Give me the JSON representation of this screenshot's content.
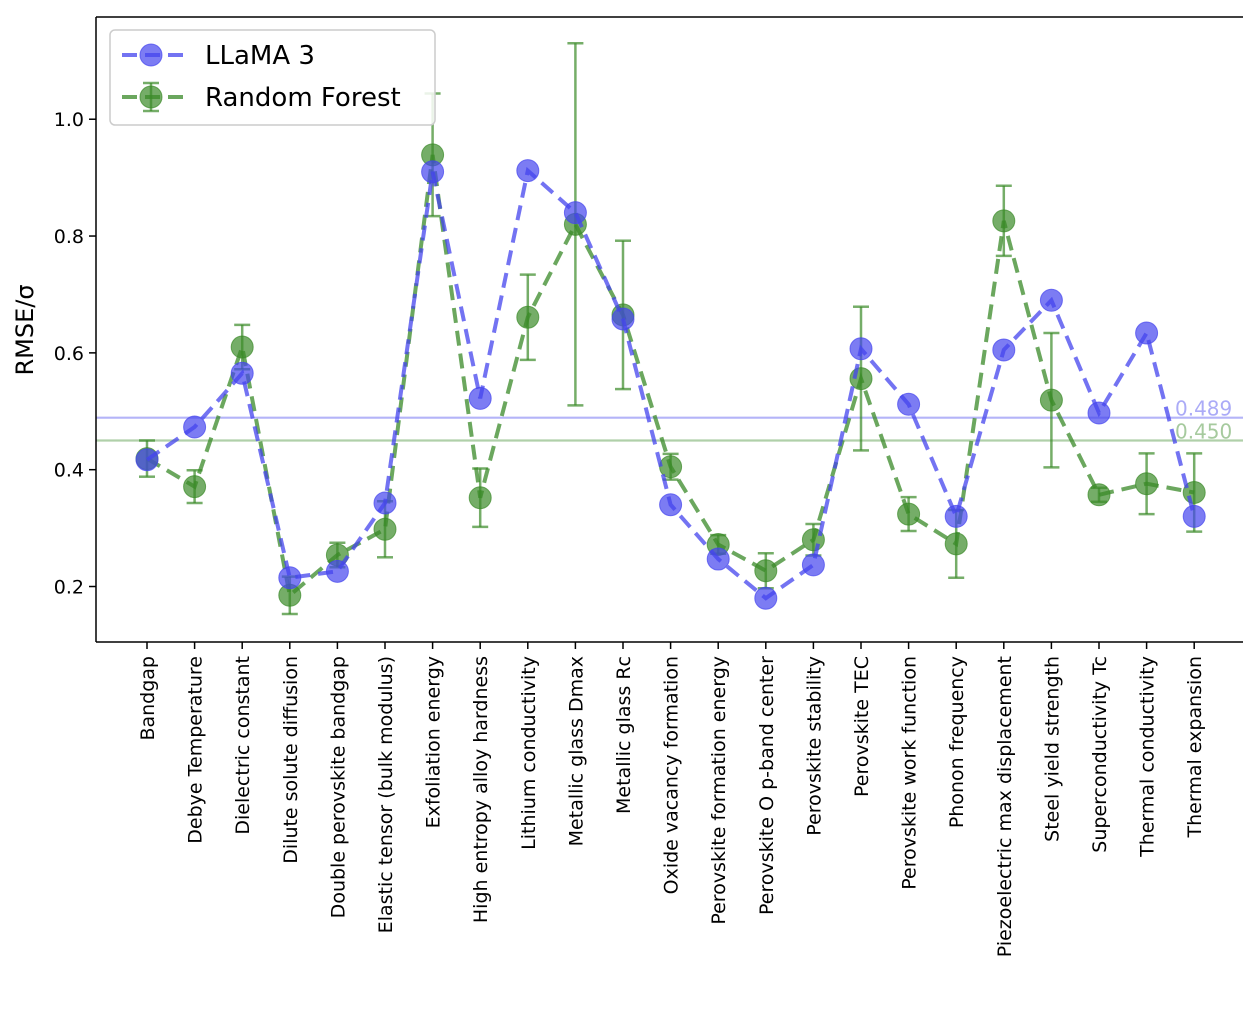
{
  "chart_data": {
    "type": "line",
    "ylabel": "RMSE/σ",
    "xlabel": "",
    "ylim": [
      0.105,
      1.175
    ],
    "yticks": [
      "0.2",
      "0.4",
      "0.6",
      "0.8",
      "1.0"
    ],
    "grid": false,
    "legend_position": "top-left",
    "categories": [
      "Bandgap",
      "Debye Temperature",
      "Dielectric constant",
      "Dilute solute diffusion",
      "Double perovskite bandgap",
      "Elastic tensor (bulk modulus)",
      "Exfoliation energy",
      "High entropy alloy hardness",
      "Lithium conductivity",
      "Metallic glass Dmax",
      "Metallic glass Rc",
      "Oxide vacancy formation",
      "Perovskite formation energy",
      "Perovskite O p-band center",
      "Perovskite stability",
      "Perovskite TEC",
      "Perovskite work function",
      "Phonon frequency",
      "Piezoelectric max displacement",
      "Steel yield strength",
      "Superconductivity Tc",
      "Thermal conductivity",
      "Thermal expansion"
    ],
    "series": [
      {
        "name": "LLaMA 3",
        "color": "#4444ee",
        "values": [
          0.417,
          0.473,
          0.565,
          0.215,
          0.226,
          0.343,
          0.91,
          0.522,
          0.912,
          0.84,
          0.658,
          0.34,
          0.247,
          0.18,
          0.237,
          0.607,
          0.512,
          0.32,
          0.605,
          0.69,
          0.497,
          0.634,
          0.32
        ],
        "mean": 0.489,
        "mean_label": "0.489"
      },
      {
        "name": "Random Forest",
        "color": "#3a8a28",
        "values": [
          0.419,
          0.371,
          0.61,
          0.185,
          0.254,
          0.298,
          0.939,
          0.352,
          0.661,
          0.82,
          0.665,
          0.405,
          0.272,
          0.227,
          0.28,
          0.556,
          0.324,
          0.273,
          0.826,
          0.519,
          0.357,
          0.376,
          0.361
        ],
        "errors": [
          0.031,
          0.028,
          0.038,
          0.032,
          0.021,
          0.048,
          0.105,
          0.05,
          0.073,
          0.31,
          0.127,
          0.022,
          0.016,
          0.03,
          0.027,
          0.123,
          0.029,
          0.058,
          0.06,
          0.115,
          0.012,
          0.052,
          0.067
        ],
        "mean": 0.45,
        "mean_label": "0.450"
      }
    ]
  }
}
